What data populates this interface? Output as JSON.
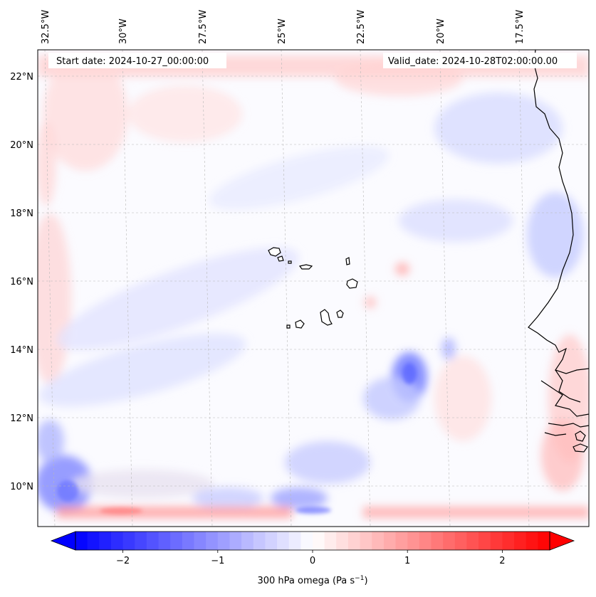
{
  "header": {
    "start_date": "Start date: 2024-10-27_00:00:00",
    "valid_date": "Valid_date: 2024-10-28T02:00:00.00"
  },
  "axes": {
    "lon_labels": [
      "32.5°W",
      "30°W",
      "27.5°W",
      "25°W",
      "22.5°W",
      "20°W",
      "17.5°W"
    ],
    "lat_labels": [
      "22°N",
      "20°N",
      "18°N",
      "16°N",
      "14°N",
      "12°N",
      "10°N"
    ]
  },
  "colorbar": {
    "ticks": [
      "−2",
      "−1",
      "0",
      "1",
      "2"
    ],
    "tick_values": [
      -2,
      -1,
      0,
      1,
      2
    ],
    "range": [
      -2.5,
      2.5
    ],
    "label_main": "300 hPa omega (Pa s",
    "label_exp": "−1",
    "label_close": ")",
    "low_color": "#0000ff",
    "mid_color": "#ffffff",
    "high_color": "#ff0000"
  },
  "chart_data": {
    "type": "heatmap",
    "variable": "300 hPa omega",
    "units": "Pa s−1",
    "color_range": [
      -2.5,
      2.5
    ],
    "lon_ticks": [
      -32.5,
      -30,
      -27.5,
      -25,
      -22.5,
      -20,
      -17.5
    ],
    "lat_ticks": [
      22,
      20,
      18,
      16,
      14,
      12,
      10
    ],
    "start_date": "2024-10-27_00:00:00",
    "valid_date": "2024-10-28T02:00:00.00"
  }
}
